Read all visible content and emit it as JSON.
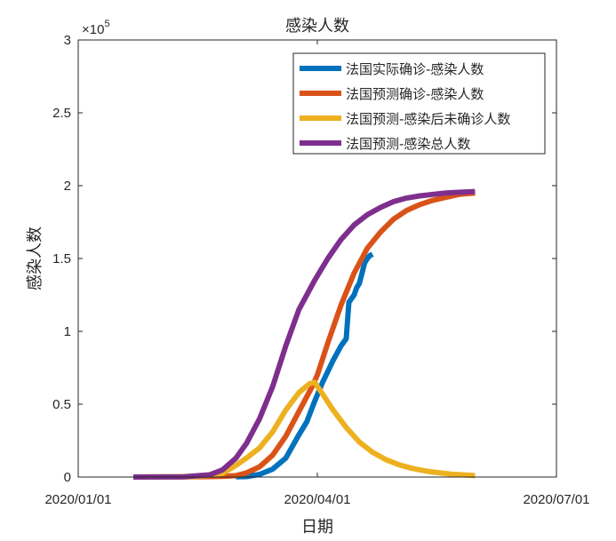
{
  "chart_data": {
    "type": "line",
    "title": "感染人数",
    "xlabel": "日期",
    "ylabel": "感染人数",
    "y_multiplier": {
      "base": "×10",
      "exponent": "5"
    },
    "x_ticks": [
      "2020/01/01",
      "2020/04/01",
      "2020/07/01"
    ],
    "y_ticks": [
      "0",
      "0.5",
      "1",
      "1.5",
      "2",
      "2.5",
      "3"
    ],
    "xlim": [
      "2020-01-01",
      "2020-07-01"
    ],
    "ylim": [
      0,
      300000
    ],
    "grid": false,
    "legend_position": "top-right",
    "series": [
      {
        "name": "法国实际确诊-感染人数",
        "color": "#0072BD",
        "points": [
          [
            "2020-03-01",
            100
          ],
          [
            "2020-03-05",
            300
          ],
          [
            "2020-03-10",
            1800
          ],
          [
            "2020-03-15",
            5400
          ],
          [
            "2020-03-20",
            13000
          ],
          [
            "2020-03-25",
            29000
          ],
          [
            "2020-03-28",
            38000
          ],
          [
            "2020-03-31",
            52000
          ],
          [
            "2020-04-03",
            65000
          ],
          [
            "2020-04-07",
            80000
          ],
          [
            "2020-04-10",
            90000
          ],
          [
            "2020-04-12",
            95000
          ],
          [
            "2020-04-13",
            120000
          ],
          [
            "2020-04-15",
            125000
          ],
          [
            "2020-04-16",
            130000
          ],
          [
            "2020-04-17",
            133000
          ],
          [
            "2020-04-18",
            140000
          ],
          [
            "2020-04-19",
            147000
          ],
          [
            "2020-04-20",
            150000
          ],
          [
            "2020-04-21",
            152000
          ],
          [
            "2020-04-22",
            153000
          ]
        ]
      },
      {
        "name": "法国预测确诊-感染人数",
        "color": "#D95319",
        "points": [
          [
            "2020-01-22",
            0
          ],
          [
            "2020-02-15",
            100
          ],
          [
            "2020-02-25",
            400
          ],
          [
            "2020-03-01",
            1000
          ],
          [
            "2020-03-05",
            2800
          ],
          [
            "2020-03-10",
            7000
          ],
          [
            "2020-03-15",
            15000
          ],
          [
            "2020-03-20",
            28000
          ],
          [
            "2020-03-25",
            45000
          ],
          [
            "2020-03-30",
            62000
          ],
          [
            "2020-04-01",
            70000
          ],
          [
            "2020-04-05",
            92000
          ],
          [
            "2020-04-10",
            118000
          ],
          [
            "2020-04-15",
            140000
          ],
          [
            "2020-04-20",
            157000
          ],
          [
            "2020-04-25",
            168000
          ],
          [
            "2020-04-30",
            177000
          ],
          [
            "2020-05-05",
            183000
          ],
          [
            "2020-05-10",
            187000
          ],
          [
            "2020-05-15",
            190000
          ],
          [
            "2020-05-20",
            192000
          ],
          [
            "2020-05-25",
            194000
          ],
          [
            "2020-05-31",
            195000
          ]
        ]
      },
      {
        "name": "法国预测-感染后未确诊人数",
        "color": "#EDB120",
        "points": [
          [
            "2020-01-22",
            0
          ],
          [
            "2020-02-15",
            300
          ],
          [
            "2020-02-25",
            2500
          ],
          [
            "2020-03-01",
            8000
          ],
          [
            "2020-03-05",
            13000
          ],
          [
            "2020-03-10",
            20000
          ],
          [
            "2020-03-15",
            31000
          ],
          [
            "2020-03-20",
            46000
          ],
          [
            "2020-03-25",
            58000
          ],
          [
            "2020-03-29",
            64000
          ],
          [
            "2020-03-31",
            65000
          ],
          [
            "2020-04-03",
            57000
          ],
          [
            "2020-04-07",
            46000
          ],
          [
            "2020-04-12",
            34000
          ],
          [
            "2020-04-17",
            24000
          ],
          [
            "2020-04-22",
            17000
          ],
          [
            "2020-04-27",
            12000
          ],
          [
            "2020-05-02",
            8500
          ],
          [
            "2020-05-07",
            6000
          ],
          [
            "2020-05-12",
            4200
          ],
          [
            "2020-05-17",
            3000
          ],
          [
            "2020-05-22",
            2000
          ],
          [
            "2020-05-31",
            1000
          ]
        ]
      },
      {
        "name": "法国预测-感染总人数",
        "color": "#7E2F8E",
        "points": [
          [
            "2020-01-22",
            0
          ],
          [
            "2020-02-10",
            200
          ],
          [
            "2020-02-20",
            1500
          ],
          [
            "2020-02-25",
            5000
          ],
          [
            "2020-03-01",
            13000
          ],
          [
            "2020-03-05",
            23000
          ],
          [
            "2020-03-10",
            40000
          ],
          [
            "2020-03-15",
            62000
          ],
          [
            "2020-03-20",
            90000
          ],
          [
            "2020-03-25",
            115000
          ],
          [
            "2020-03-31",
            135000
          ],
          [
            "2020-04-05",
            150000
          ],
          [
            "2020-04-10",
            163000
          ],
          [
            "2020-04-15",
            173000
          ],
          [
            "2020-04-20",
            180000
          ],
          [
            "2020-04-25",
            185000
          ],
          [
            "2020-04-30",
            189000
          ],
          [
            "2020-05-05",
            191500
          ],
          [
            "2020-05-10",
            193000
          ],
          [
            "2020-05-15",
            194000
          ],
          [
            "2020-05-20",
            195000
          ],
          [
            "2020-05-31",
            196000
          ]
        ]
      }
    ]
  }
}
